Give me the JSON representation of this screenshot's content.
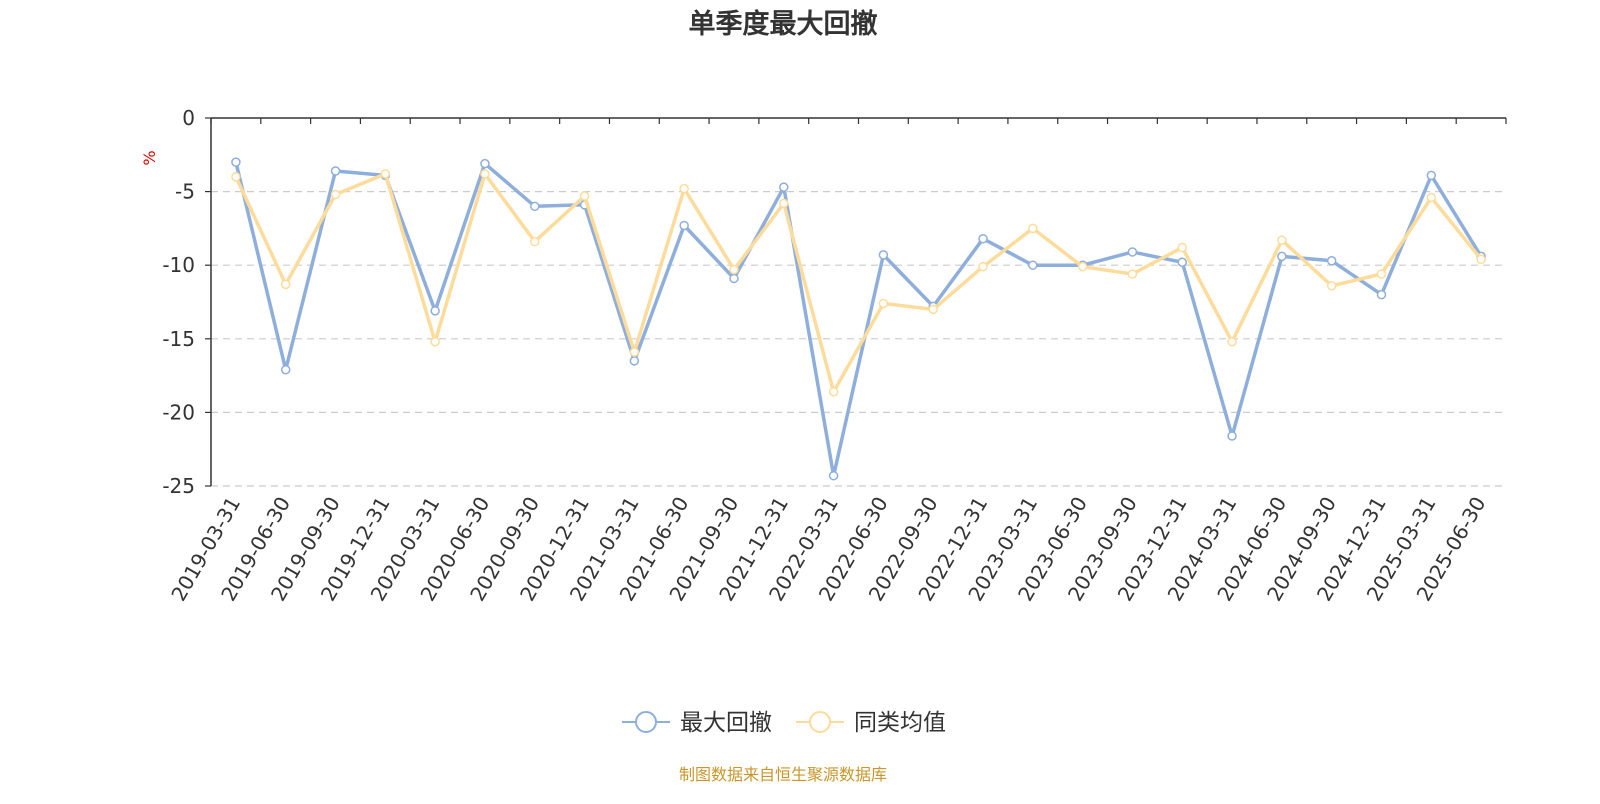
{
  "chart_data": {
    "type": "line",
    "title": "单季度最大回撤",
    "ylabel": "%",
    "xlabel": "",
    "ylim": [
      -25,
      0
    ],
    "yticks": [
      0,
      -5,
      -10,
      -15,
      -20,
      -25
    ],
    "grid": true,
    "legend_position": "bottom",
    "categories": [
      "2019-03-31",
      "2019-06-30",
      "2019-09-30",
      "2019-12-31",
      "2020-03-31",
      "2020-06-30",
      "2020-09-30",
      "2020-12-31",
      "2021-03-31",
      "2021-06-30",
      "2021-09-30",
      "2021-12-31",
      "2022-03-31",
      "2022-06-30",
      "2022-09-30",
      "2022-12-31",
      "2023-03-31",
      "2023-06-30",
      "2023-09-30",
      "2023-12-31",
      "2024-03-31",
      "2024-06-30",
      "2024-09-30",
      "2024-12-31",
      "2025-03-31",
      "2025-06-30"
    ],
    "series": [
      {
        "name": "最大回撤",
        "color": "#8eaedb",
        "values": [
          -3.0,
          -17.1,
          -3.6,
          -3.9,
          -13.1,
          -3.1,
          -6.0,
          -5.9,
          -16.5,
          -7.3,
          -10.9,
          -4.7,
          -24.3,
          -9.3,
          -12.8,
          -8.2,
          -10.0,
          -10.0,
          -9.1,
          -9.8,
          -21.6,
          -9.4,
          -9.7,
          -12.0,
          -3.9,
          -9.4
        ]
      },
      {
        "name": "同类均值",
        "color": "#fddc9b",
        "values": [
          -4.0,
          -11.3,
          -5.2,
          -3.8,
          -15.2,
          -3.8,
          -8.4,
          -5.3,
          -15.9,
          -4.8,
          -10.3,
          -5.8,
          -18.6,
          -12.6,
          -13.0,
          -10.1,
          -7.5,
          -10.1,
          -10.6,
          -8.8,
          -15.2,
          -8.3,
          -11.4,
          -10.6,
          -5.4,
          -9.6
        ]
      }
    ],
    "source_note": "制图数据来自恒生聚源数据库",
    "source_color": "#c8962a"
  }
}
